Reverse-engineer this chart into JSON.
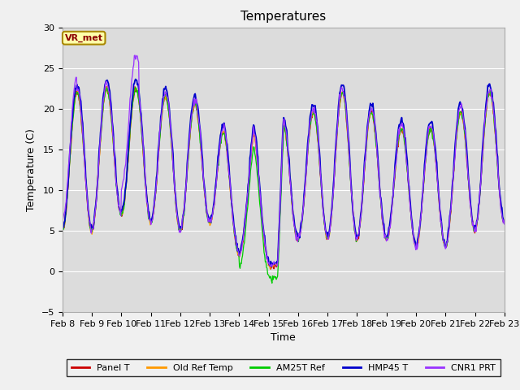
{
  "title": "Temperatures",
  "xlabel": "Time",
  "ylabel": "Temperature (C)",
  "ylim": [
    -5,
    30
  ],
  "annotation_text": "VR_met",
  "x_tick_labels": [
    "Feb 8",
    "Feb 9",
    "Feb 10",
    "Feb 11",
    "Feb 12",
    "Feb 13",
    "Feb 14",
    "Feb 15",
    "Feb 16",
    "Feb 17",
    "Feb 18",
    "Feb 19",
    "Feb 20",
    "Feb 21",
    "Feb 22",
    "Feb 23"
  ],
  "legend_entries": [
    "Panel T",
    "Old Ref Temp",
    "AM25T Ref",
    "HMP45 T",
    "CNR1 PRT"
  ],
  "line_colors": [
    "#cc0000",
    "#ff9900",
    "#00cc00",
    "#0000cc",
    "#9933ff"
  ],
  "plot_bg_color": "#dcdcdc",
  "fig_bg_color": "#f0f0f0",
  "grid_color": "#ffffff",
  "title_fontsize": 11,
  "label_fontsize": 9,
  "tick_fontsize": 8,
  "n_days": 15,
  "pts_per_day": 48,
  "ylim_min": -5,
  "ylim_max": 30
}
